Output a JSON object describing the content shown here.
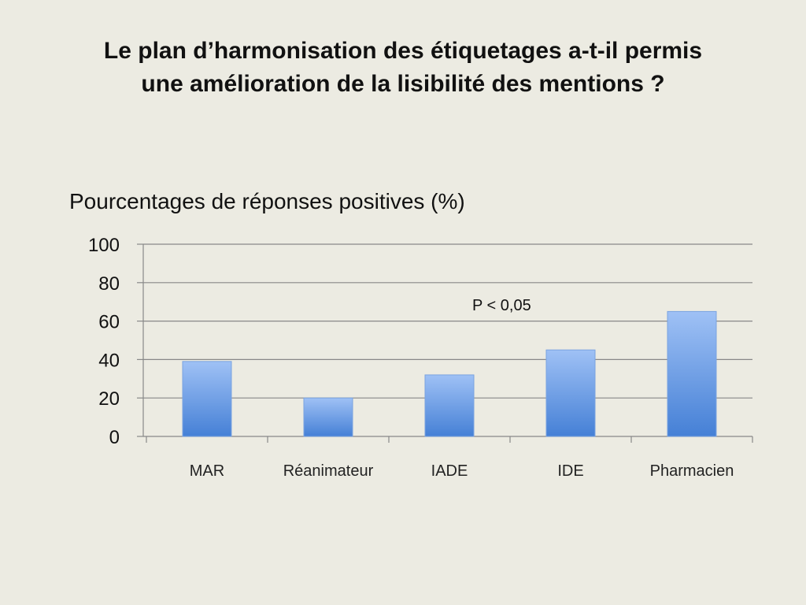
{
  "slide": {
    "title_lines": [
      "Le plan d’harmonisation des étiquetages a-t-il permis",
      "une amélioration de la lisibilité des mentions ?"
    ]
  },
  "chart_data": {
    "type": "bar",
    "title": "Pourcentages de réponses positives  (%)",
    "categories": [
      "MAR",
      "Réanimateur",
      "IADE",
      "IDE",
      "Pharmacien"
    ],
    "values": [
      39,
      20,
      32,
      45,
      65
    ],
    "ylim": [
      0,
      100
    ],
    "yticks": [
      0,
      20,
      40,
      60,
      80,
      100
    ],
    "grid": true,
    "annotation": "P < 0,05",
    "colors": {
      "bar_top": "#9fc1f5",
      "bar_bottom": "#4580d6",
      "bar_stroke": "#7aa3e0",
      "grid": "#888888"
    }
  }
}
